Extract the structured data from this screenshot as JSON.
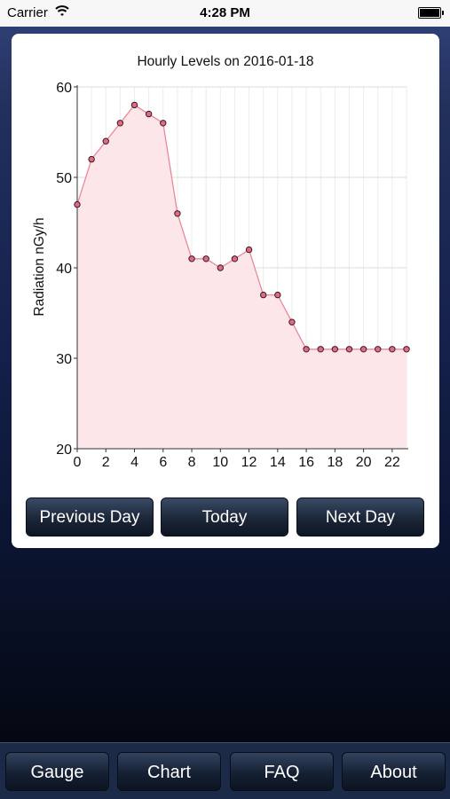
{
  "status_bar": {
    "carrier": "Carrier",
    "time": "4:28 PM",
    "wifi_icon": "wifi-icon",
    "battery_icon": "battery-icon"
  },
  "chart_data": {
    "type": "area",
    "title": "Hourly Levels on 2016-01-18",
    "xlabel": "",
    "ylabel": "Radiation nGy/h",
    "x": [
      0,
      1,
      2,
      3,
      4,
      5,
      6,
      7,
      8,
      9,
      10,
      11,
      12,
      13,
      14,
      15,
      16,
      17,
      18,
      19,
      20,
      21,
      22,
      23
    ],
    "series": [
      {
        "values": [
          47,
          52,
          54,
          56,
          58,
          57,
          56,
          46,
          41,
          41,
          40,
          41,
          42,
          37,
          37,
          34,
          31,
          31,
          31,
          31,
          31,
          31,
          31,
          31
        ]
      }
    ],
    "xlim": [
      0,
      23
    ],
    "ylim": [
      20,
      60
    ],
    "x_ticks": [
      "0",
      "2",
      "4",
      "6",
      "8",
      "10",
      "12",
      "14",
      "16",
      "18",
      "20",
      "22"
    ],
    "y_ticks": [
      "20",
      "30",
      "40",
      "50",
      "60"
    ],
    "grid": true,
    "line_color": "#e9899a",
    "fill_color": "#fde6e9",
    "marker_color": "#e06a82"
  },
  "day_nav": {
    "previous": "Previous Day",
    "today": "Today",
    "next": "Next Day"
  },
  "tabs": {
    "gauge": "Gauge",
    "chart": "Chart",
    "faq": "FAQ",
    "about": "About"
  }
}
